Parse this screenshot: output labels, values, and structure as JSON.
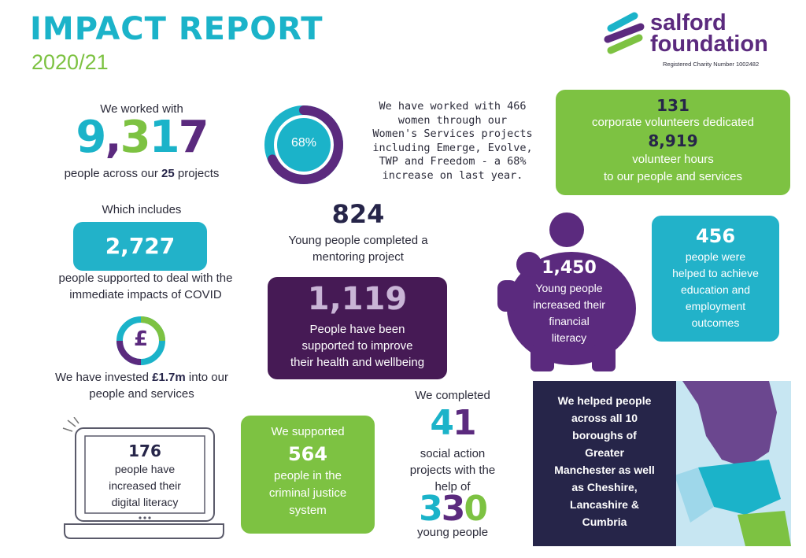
{
  "header": {
    "title": "IMPACT REPORT",
    "year": "2020/21"
  },
  "logo": {
    "line1": "salford",
    "line2": "foundation",
    "registered": "Registered Charity Number 1002482"
  },
  "people": {
    "intro": "We worked with",
    "number": "9,317",
    "after_pre": "people across our ",
    "projects": "25",
    "after_post": " projects"
  },
  "women": {
    "percent_label": "68%",
    "percent_value": 0.68,
    "lines": [
      "We have worked with 466",
      "women through our",
      "Women's Services projects",
      "including Emerge, Evolve,",
      "TWP and Freedom - a 68%",
      "increase on last year."
    ]
  },
  "volunteers": {
    "number1": "131",
    "line1": "corporate volunteers dedicated",
    "number2": "8,919",
    "line2": "volunteer hours",
    "line3": "to our people and services"
  },
  "covid": {
    "intro": "Which includes",
    "number": "2,727",
    "line1": "people supported to deal with the",
    "line2": "immediate impacts of COVID"
  },
  "mentoring": {
    "number": "824",
    "line1": "Young people completed a",
    "line2": "mentoring project"
  },
  "health": {
    "number": "1,119",
    "line1": "People have been",
    "line2": "supported to improve",
    "line3": "their health and wellbeing"
  },
  "financial": {
    "number": "1,450",
    "line1": "Young people",
    "line2": "increased their",
    "line3": "financial",
    "line4": "literacy"
  },
  "education": {
    "number": "456",
    "line1": "people were",
    "line2": "helped to achieve",
    "line3": "education and",
    "line4": "employment",
    "line5": "outcomes"
  },
  "investment": {
    "pound_symbol": "£",
    "line1_pre": "We have invested ",
    "amount": "£1.7m",
    "line1_post": " into our",
    "line2": "people and services"
  },
  "digital": {
    "number": "176",
    "line1": "people have",
    "line2": "increased their",
    "line3": "digital literacy"
  },
  "justice": {
    "line1": "We supported",
    "number": "564",
    "line2": "people in the",
    "line3": "criminal justice",
    "line4": "system"
  },
  "social": {
    "intro": "We completed",
    "number1": "41",
    "line1": "social action",
    "line2": "projects with the",
    "line3": "help of",
    "number2": "330",
    "line4": "young people"
  },
  "boroughs": {
    "lines": [
      "We helped people",
      "across all 10",
      "boroughs of",
      "Greater",
      "Manchester as well",
      "as Cheshire,",
      "Lancashire &",
      "Cumbria"
    ]
  },
  "colors": {
    "teal": "#1bb3c9",
    "purple": "#5b2a7e",
    "green": "#7dc242",
    "navy": "#262549",
    "dark_purple": "#461a55"
  }
}
